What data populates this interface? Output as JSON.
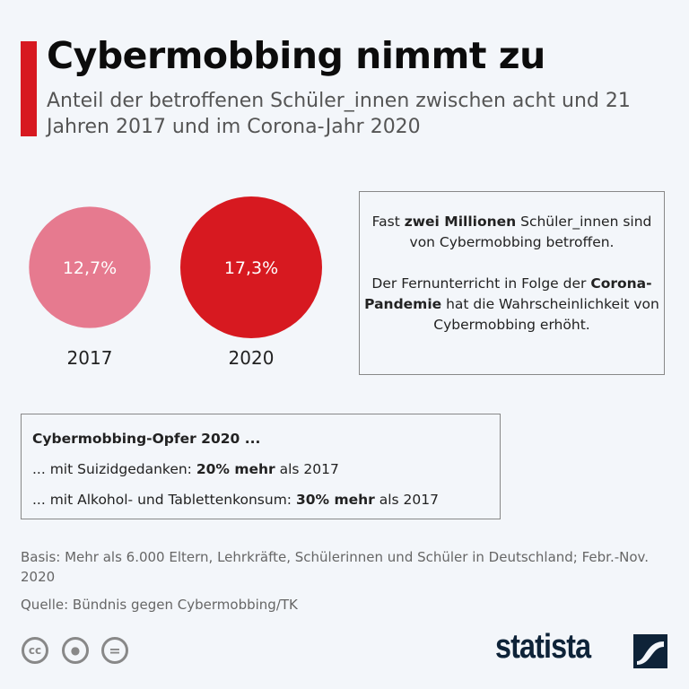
{
  "header": {
    "title": "Cybermobbing nimmt zu",
    "subtitle": "Anteil der betroffenen Schüler_innen zwischen acht und 21 Jahren 2017 und im Corona-Jahr 2020"
  },
  "chart_data": {
    "type": "bubble",
    "categories": [
      "2017",
      "2020"
    ],
    "values": [
      12.7,
      17.3
    ],
    "value_labels": [
      "12,7%",
      "17,3%"
    ],
    "unit": "%",
    "colors": [
      "#e67a8f",
      "#d71920"
    ]
  },
  "info_box": {
    "p1": [
      {
        "t": "Fast ",
        "b": false
      },
      {
        "t": "zwei Millionen",
        "b": true
      },
      {
        "t": " Schüler_innen sind von Cybermobbing betroffen.",
        "b": false
      }
    ],
    "p2": [
      {
        "t": "Der Fernunterricht in Folge der ",
        "b": false
      },
      {
        "t": "Corona-Pandemie",
        "b": true
      },
      {
        "t": " hat die Wahrscheinlichkeit von Cybermobbing erhöht.",
        "b": false
      }
    ]
  },
  "victims_box": {
    "heading": "Cybermobbing-Opfer 2020 ...",
    "line1": [
      {
        "t": "... mit Suizidgedanken: ",
        "b": false
      },
      {
        "t": "20% mehr",
        "b": true
      },
      {
        "t": " als 2017",
        "b": false
      }
    ],
    "line2": [
      {
        "t": "... mit Alkohol- und Tablettenkonsum: ",
        "b": false
      },
      {
        "t": "30% mehr",
        "b": true
      },
      {
        "t": " als 2017",
        "b": false
      }
    ]
  },
  "footer": {
    "basis": "Basis: Mehr als 6.000 Eltern, Lehrkräfte, Schülerinnen und Schüler in Deutschland; Febr.-Nov. 2020",
    "source": "Quelle: Bündnis gegen Cybermobbing/TK",
    "license_icons": [
      "cc-icon",
      "by-icon",
      "nd-icon"
    ],
    "logo": "statista"
  },
  "colors": {
    "accent": "#d71920",
    "brand": "#0e2338",
    "background": "#f3f6fa"
  }
}
